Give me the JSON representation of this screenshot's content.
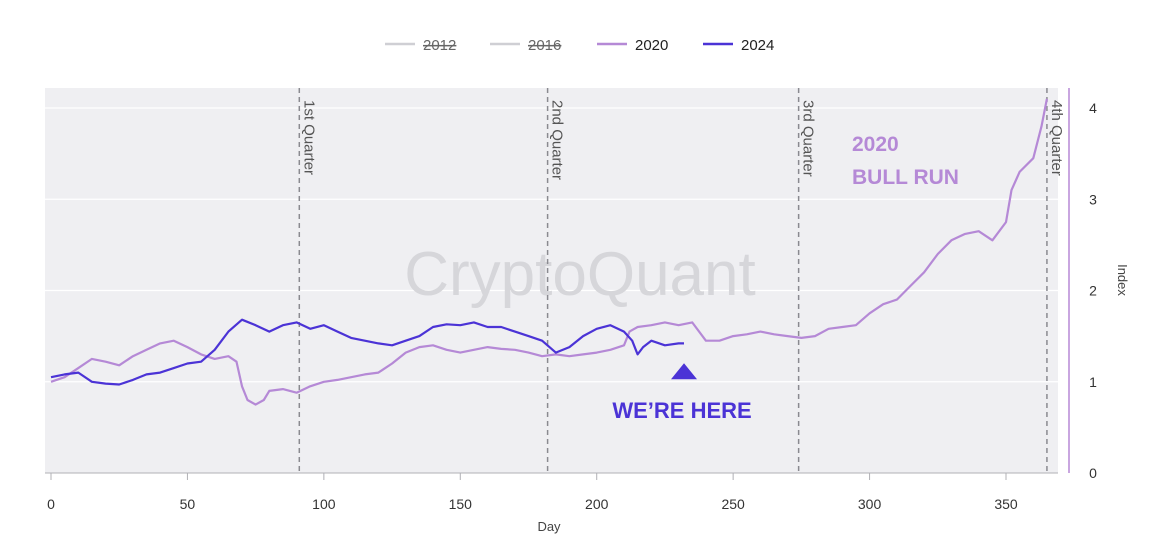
{
  "chart_data": {
    "type": "line",
    "xlabel": "Day",
    "ylabel": "Index",
    "xlim": [
      0,
      369
    ],
    "ylim": [
      0,
      4.2
    ],
    "x_ticks": [
      0,
      50,
      100,
      150,
      200,
      250,
      300,
      350
    ],
    "y_ticks": [
      0,
      1,
      2,
      3,
      4
    ],
    "grid": "horizontal",
    "legend_position": "top-center",
    "watermark": "CryptoQuant",
    "quarter_markers": [
      {
        "day": 91,
        "label": "1st Quarter"
      },
      {
        "day": 182,
        "label": "2nd Quarter"
      },
      {
        "day": 274,
        "label": "3rd Quarter"
      },
      {
        "day": 365,
        "label": "4th Quarter"
      }
    ],
    "annotations": {
      "bull_run_line1": "2020",
      "bull_run_line2": "BULL RUN",
      "here_label": "WE’RE HERE",
      "here_day": 232,
      "here_value": 1.05
    },
    "series": [
      {
        "name": "2012",
        "visible": false,
        "color": "#cfcfd4",
        "x": [],
        "values": []
      },
      {
        "name": "2016",
        "visible": false,
        "color": "#cfcfd4",
        "x": [],
        "values": []
      },
      {
        "name": "2020",
        "visible": true,
        "color": "#b589d6",
        "x": [
          0,
          5,
          10,
          15,
          20,
          25,
          30,
          35,
          40,
          45,
          50,
          55,
          60,
          65,
          68,
          70,
          72,
          75,
          78,
          80,
          85,
          90,
          95,
          100,
          105,
          110,
          115,
          120,
          125,
          130,
          135,
          140,
          145,
          150,
          155,
          160,
          165,
          170,
          175,
          180,
          185,
          190,
          195,
          200,
          205,
          210,
          212,
          215,
          220,
          225,
          230,
          235,
          240,
          245,
          250,
          255,
          260,
          265,
          270,
          275,
          280,
          285,
          290,
          295,
          300,
          305,
          310,
          315,
          320,
          325,
          330,
          335,
          340,
          345,
          350,
          352,
          355,
          360,
          363,
          365
        ],
        "values": [
          1.0,
          1.05,
          1.15,
          1.25,
          1.22,
          1.18,
          1.28,
          1.35,
          1.42,
          1.45,
          1.38,
          1.3,
          1.25,
          1.28,
          1.22,
          0.95,
          0.8,
          0.75,
          0.8,
          0.9,
          0.92,
          0.88,
          0.95,
          1.0,
          1.02,
          1.05,
          1.08,
          1.1,
          1.2,
          1.32,
          1.38,
          1.4,
          1.35,
          1.32,
          1.35,
          1.38,
          1.36,
          1.35,
          1.32,
          1.28,
          1.3,
          1.28,
          1.3,
          1.32,
          1.35,
          1.4,
          1.55,
          1.6,
          1.62,
          1.65,
          1.62,
          1.65,
          1.45,
          1.45,
          1.5,
          1.52,
          1.55,
          1.52,
          1.5,
          1.48,
          1.5,
          1.58,
          1.6,
          1.62,
          1.75,
          1.85,
          1.9,
          2.05,
          2.2,
          2.4,
          2.55,
          2.62,
          2.65,
          2.55,
          2.75,
          3.1,
          3.3,
          3.45,
          3.8,
          4.1
        ]
      },
      {
        "name": "2024",
        "visible": true,
        "color": "#4b33d6",
        "x": [
          0,
          5,
          10,
          15,
          20,
          25,
          30,
          35,
          40,
          45,
          50,
          55,
          60,
          65,
          70,
          75,
          80,
          85,
          90,
          95,
          100,
          105,
          110,
          115,
          120,
          125,
          130,
          135,
          140,
          145,
          150,
          155,
          160,
          165,
          170,
          175,
          180,
          185,
          190,
          195,
          200,
          205,
          210,
          213,
          215,
          217,
          220,
          225,
          230,
          232
        ],
        "values": [
          1.05,
          1.08,
          1.1,
          1.0,
          0.98,
          0.97,
          1.02,
          1.08,
          1.1,
          1.15,
          1.2,
          1.22,
          1.35,
          1.55,
          1.68,
          1.62,
          1.55,
          1.62,
          1.65,
          1.58,
          1.62,
          1.55,
          1.48,
          1.45,
          1.42,
          1.4,
          1.45,
          1.5,
          1.6,
          1.63,
          1.62,
          1.65,
          1.6,
          1.6,
          1.55,
          1.5,
          1.45,
          1.32,
          1.38,
          1.5,
          1.58,
          1.62,
          1.55,
          1.45,
          1.3,
          1.38,
          1.45,
          1.4,
          1.42,
          1.42
        ]
      }
    ]
  }
}
